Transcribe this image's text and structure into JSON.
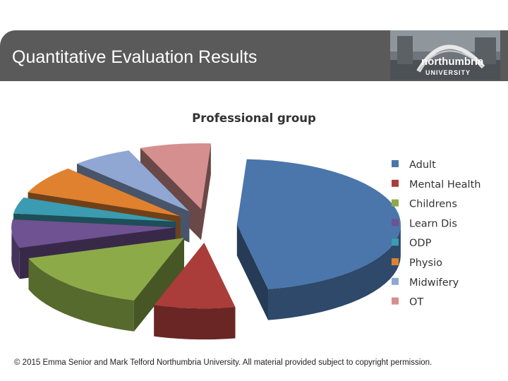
{
  "slide": {
    "title": "Quantitative Evaluation Results",
    "logo_text": "northumbria",
    "logo_subtext": "UNIVERSITY",
    "footer": "© 2015 Emma Senior and Mark Telford Northumbria University. All material provided subject to copyright permission."
  },
  "colors": {
    "title_bar": "#5a5a5a",
    "title_text": "#ffffff"
  },
  "chart_data": {
    "type": "pie",
    "title": "Professional group",
    "legend_position": "right",
    "categories": [
      "Adult",
      "Mental Health",
      "Childrens",
      "Learn Dis",
      "ODP",
      "Physio",
      "Midwifery",
      "OT"
    ],
    "values": [
      46,
      8,
      15,
      7,
      4,
      7,
      6,
      7
    ],
    "colors": [
      "#4a76ab",
      "#aa3d3a",
      "#8cab48",
      "#6f5291",
      "#3b9bb0",
      "#e0812f",
      "#8fa7d2",
      "#d48f8e"
    ]
  }
}
